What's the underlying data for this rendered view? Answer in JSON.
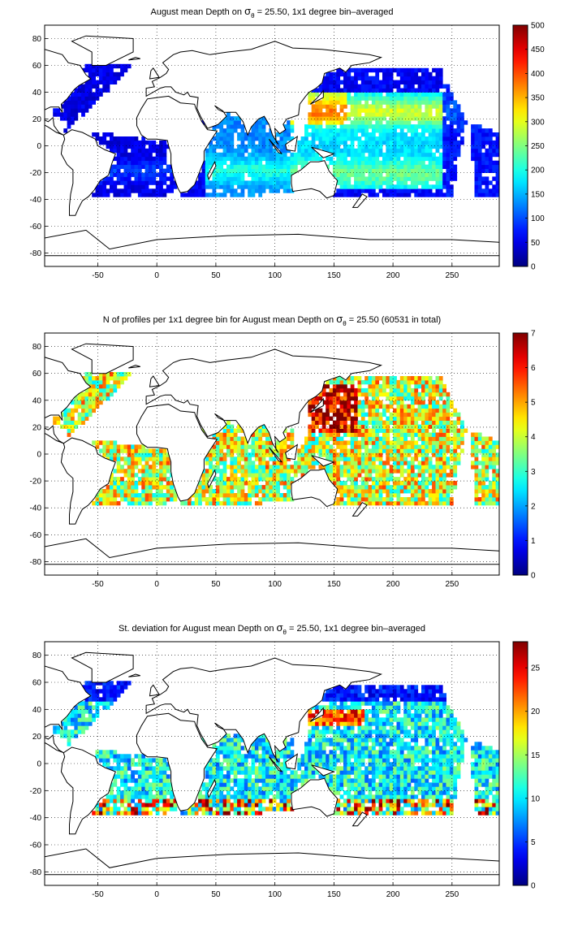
{
  "chart_data": [
    {
      "type": "heatmap",
      "title_parts": [
        "August mean Depth on ",
        "σ",
        "θ",
        " = 25.50, 1x1 degree bin–averaged"
      ],
      "xlabel": "",
      "ylabel": "",
      "xlim": [
        -95,
        290
      ],
      "ylim": [
        -90,
        90
      ],
      "xticks": [
        -50,
        0,
        50,
        100,
        150,
        200,
        250
      ],
      "yticks": [
        -80,
        -60,
        -40,
        -20,
        0,
        20,
        40,
        60,
        80
      ],
      "grid": true,
      "colormap": "jet",
      "clim": [
        0,
        500
      ],
      "colorbar_ticks": [
        0,
        50,
        100,
        150,
        200,
        250,
        300,
        350,
        400,
        450,
        500
      ]
    },
    {
      "type": "heatmap",
      "title_parts": [
        "N of profiles per 1x1 degree bin for August mean Depth on ",
        "σ",
        "θ",
        " = 25.50 (60531 in total)"
      ],
      "xlabel": "",
      "ylabel": "",
      "xlim": [
        -95,
        290
      ],
      "ylim": [
        -90,
        90
      ],
      "xticks": [
        -50,
        0,
        50,
        100,
        150,
        200,
        250
      ],
      "yticks": [
        -80,
        -60,
        -40,
        -20,
        0,
        20,
        40,
        60,
        80
      ],
      "grid": true,
      "colormap": "jet",
      "clim": [
        0,
        7
      ],
      "colorbar_ticks": [
        0,
        1,
        2,
        3,
        4,
        5,
        6,
        7
      ]
    },
    {
      "type": "heatmap",
      "title_parts": [
        "St. deviation for August mean Depth on ",
        "σ",
        "θ",
        " = 25.50, 1x1 degree bin–averaged"
      ],
      "xlabel": "",
      "ylabel": "",
      "xlim": [
        -95,
        290
      ],
      "ylim": [
        -90,
        90
      ],
      "xticks": [
        -50,
        0,
        50,
        100,
        150,
        200,
        250
      ],
      "yticks": [
        -80,
        -60,
        -40,
        -20,
        0,
        20,
        40,
        60,
        80
      ],
      "grid": true,
      "colormap": "jet",
      "clim": [
        0,
        28
      ],
      "colorbar_ticks": [
        0,
        5,
        10,
        15,
        20,
        25
      ]
    }
  ]
}
